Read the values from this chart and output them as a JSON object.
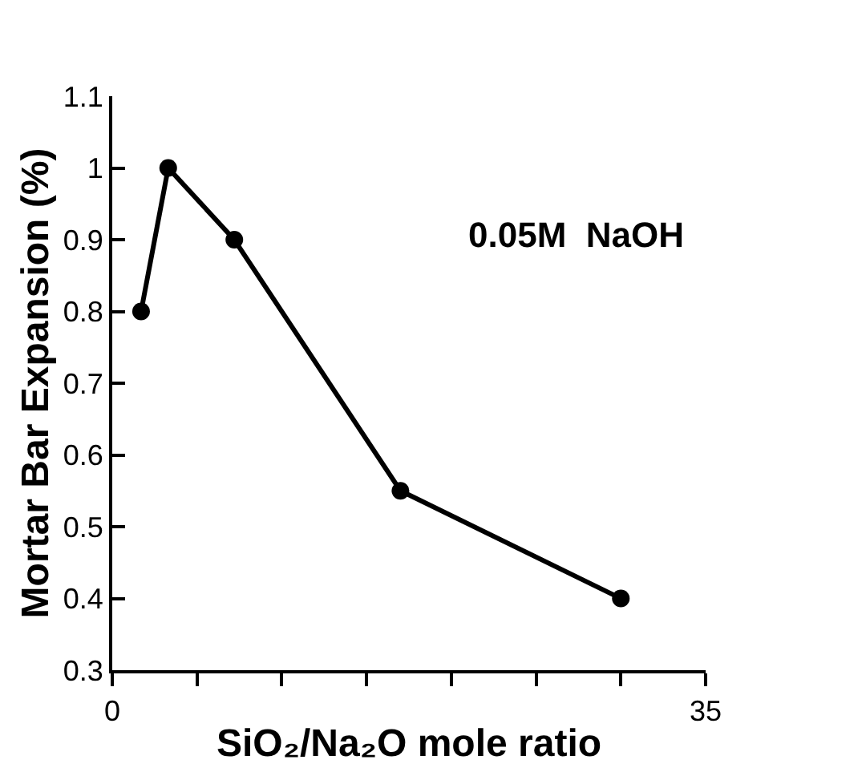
{
  "chart_data": {
    "type": "line",
    "xlabel": "SiO₂/Na₂O mole ratio",
    "ylabel": "Mortar Bar Expansion (%)",
    "x": [
      1.7,
      3.3,
      7.2,
      17,
      30
    ],
    "series": [
      {
        "color": "#000000",
        "values": [
          0.8,
          1.0,
          0.9,
          0.55,
          0.4
        ]
      }
    ],
    "xlim": [
      0,
      35
    ],
    "xticks": [
      0,
      {
        "value": 5,
        "label": null
      },
      {
        "value": 10,
        "label": null
      },
      {
        "value": 15,
        "label": null
      },
      {
        "value": 20,
        "label": null
      },
      {
        "value": 25,
        "label": null
      },
      {
        "value": 30,
        "label": null
      },
      35
    ],
    "ylim": [
      0.3,
      1.1
    ],
    "yticks": [
      0.3,
      0.4,
      0.5,
      0.6,
      0.7,
      0.8,
      0.9,
      {
        "value": 1.0,
        "label": "1"
      },
      1.1
    ],
    "annotations": [
      "0.05M  NaOH"
    ],
    "marker": "circle",
    "line_style": "solid"
  }
}
